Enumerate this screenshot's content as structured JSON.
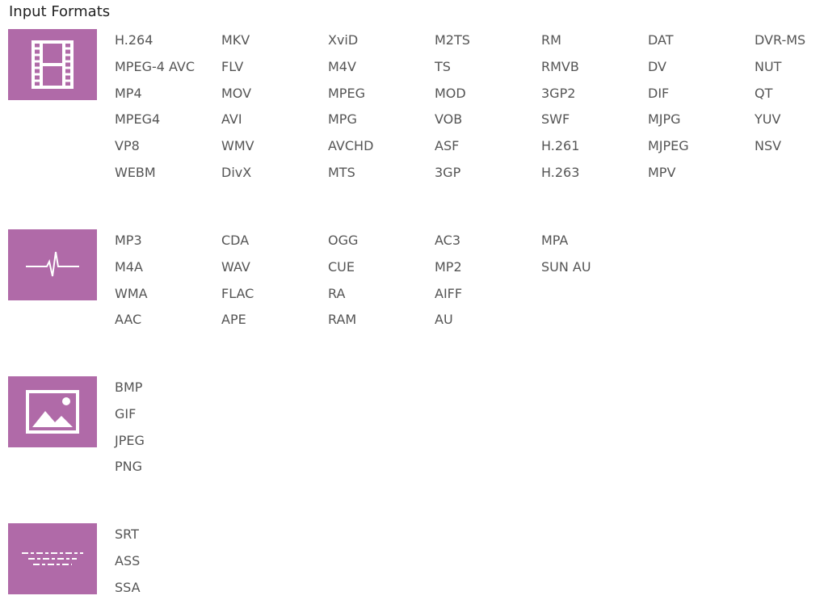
{
  "title": "Input Formats",
  "accent": "#b06aa8",
  "sections": [
    {
      "icon": "film-icon",
      "columns": [
        [
          "H.264",
          "MPEG-4 AVC",
          "MP4",
          "MPEG4",
          "VP8",
          "WEBM"
        ],
        [
          "MKV",
          "FLV",
          "MOV",
          "AVI",
          "WMV",
          "DivX"
        ],
        [
          "XviD",
          "M4V",
          "MPEG",
          "MPG",
          "AVCHD",
          "MTS"
        ],
        [
          "M2TS",
          "TS",
          "MOD",
          "VOB",
          "ASF",
          "3GP"
        ],
        [
          "RM",
          "RMVB",
          "3GP2",
          "SWF",
          "H.261",
          "H.263"
        ],
        [
          "DAT",
          "DV",
          "DIF",
          "MJPG",
          "MJPEG",
          "MPV"
        ],
        [
          "DVR-MS",
          "NUT",
          "QT",
          "YUV",
          "NSV"
        ]
      ]
    },
    {
      "icon": "audio-wave-icon",
      "columns": [
        [
          "MP3",
          "M4A",
          "WMA",
          "AAC"
        ],
        [
          "CDA",
          "WAV",
          "FLAC",
          "APE"
        ],
        [
          "OGG",
          "CUE",
          "RA",
          "RAM"
        ],
        [
          "AC3",
          "MP2",
          "AIFF",
          "AU"
        ],
        [
          "MPA",
          "SUN AU"
        ]
      ]
    },
    {
      "icon": "image-icon",
      "columns": [
        [
          "BMP",
          "GIF",
          "JPEG",
          "PNG"
        ]
      ]
    },
    {
      "icon": "subtitle-icon",
      "columns": [
        [
          "SRT",
          "ASS",
          "SSA"
        ]
      ]
    }
  ]
}
